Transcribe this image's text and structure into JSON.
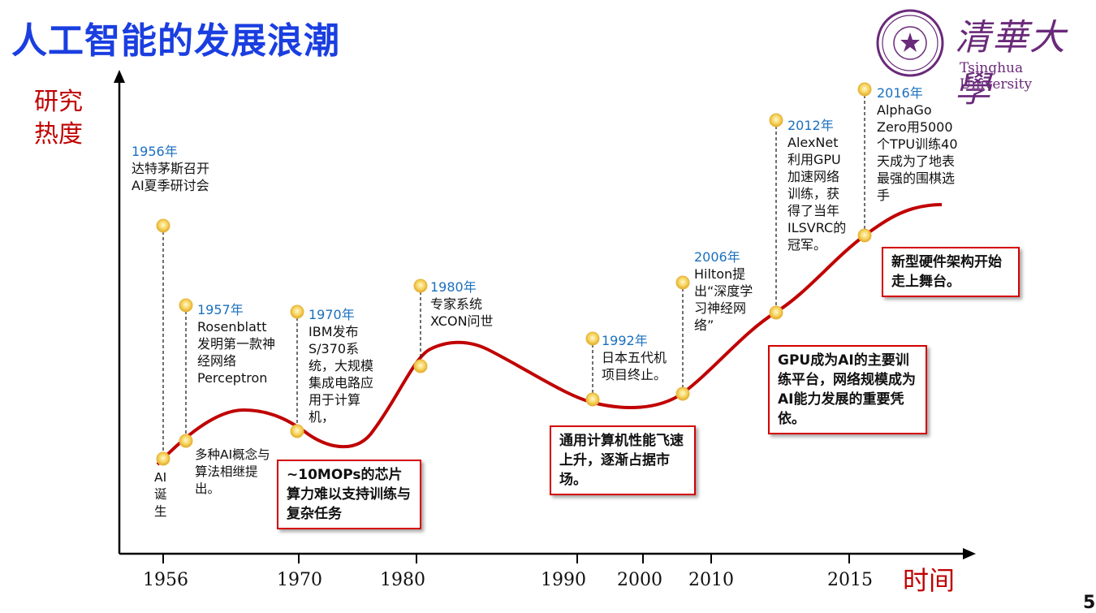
{
  "title": "人工智能的发展浪潮",
  "y_axis_label": "研究热度",
  "x_axis_label": "时间",
  "page_number": "5",
  "logo": {
    "chinese": "清華大學",
    "english": "Tsinghua University"
  },
  "x_ticks": [
    "1956",
    "1970",
    "1980",
    "1990",
    "2000",
    "2010",
    "2015"
  ],
  "events": [
    {
      "year": "1956年",
      "text": "达特茅斯召开AI夏季研讨会"
    },
    {
      "year": "1957年",
      "text": "Rosenblatt发明第一款神经网络Perceptron"
    },
    {
      "year": "1970年",
      "text": "IBM发布S/370系统，大规模集成电路应用于计算机，"
    },
    {
      "year": "1980年",
      "text": "专家系统XCON问世"
    },
    {
      "year": "1992年",
      "text": "日本五代机项目终止。"
    },
    {
      "year": "2006年",
      "text": "Hilton提出“深度学习神经网络”"
    },
    {
      "year": "2012年",
      "text": "AlexNet利用GPU加速网络训练，获得了当年ILSVRC的冠军。"
    },
    {
      "year": "2016年",
      "text": "AlphaGo Zero用5000个TPU训练40天成为了地表最强的围棋选手"
    }
  ],
  "notes": {
    "ai_birth": "AI诞生",
    "concepts": "多种AI概念与算法相继提出。"
  },
  "boxes": {
    "mops": "~10MOPs的芯片算力难以支持训练与复杂任务",
    "general": "通用计算机性能飞速上升，逐渐占据市场。",
    "gpu": "GPU成为AI的主要训练平台，网络规模成为AI能力发展的重要凭依。",
    "hardware": "新型硬件架构开始走上舞台。"
  }
}
